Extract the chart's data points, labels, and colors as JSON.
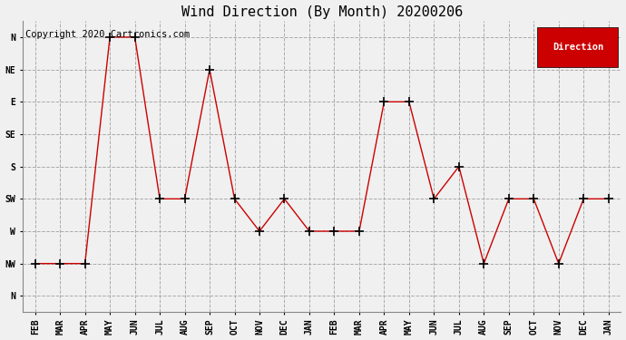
{
  "title": "Wind Direction (By Month) 20200206",
  "copyright": "Copyright 2020 Cartronics.com",
  "legend_label": "Direction",
  "x_labels": [
    "FEB",
    "MAR",
    "APR",
    "MAY",
    "JUN",
    "JUL",
    "AUG",
    "SEP",
    "OCT",
    "NOV",
    "DEC",
    "JAN",
    "FEB",
    "MAR",
    "APR",
    "MAY",
    "JUN",
    "JUL",
    "AUG",
    "SEP",
    "OCT",
    "NOV",
    "DEC",
    "JAN"
  ],
  "y_labels_top_to_bottom": [
    "N",
    "NW",
    "W",
    "SW",
    "S",
    "SE",
    "E",
    "NE",
    "N"
  ],
  "y_ticks": [
    8,
    7,
    6,
    5,
    4,
    3,
    2,
    1,
    0
  ],
  "direction_values": [
    7,
    7,
    7,
    0,
    0,
    5,
    5,
    1,
    5,
    6,
    5,
    6,
    6,
    6,
    2,
    2,
    5,
    4,
    7,
    5,
    5,
    7,
    5,
    5
  ],
  "line_color": "#cc0000",
  "marker": "+",
  "marker_size": 7,
  "marker_color": "#000000",
  "background_color": "#f0f0f0",
  "plot_bg_color": "#f0f0f0",
  "grid_color": "#aaaaaa",
  "grid_style": "dashed",
  "title_fontsize": 11,
  "copyright_fontsize": 7.5,
  "legend_bg": "#cc0000",
  "legend_text_color": "#ffffff",
  "tick_fontsize": 7
}
